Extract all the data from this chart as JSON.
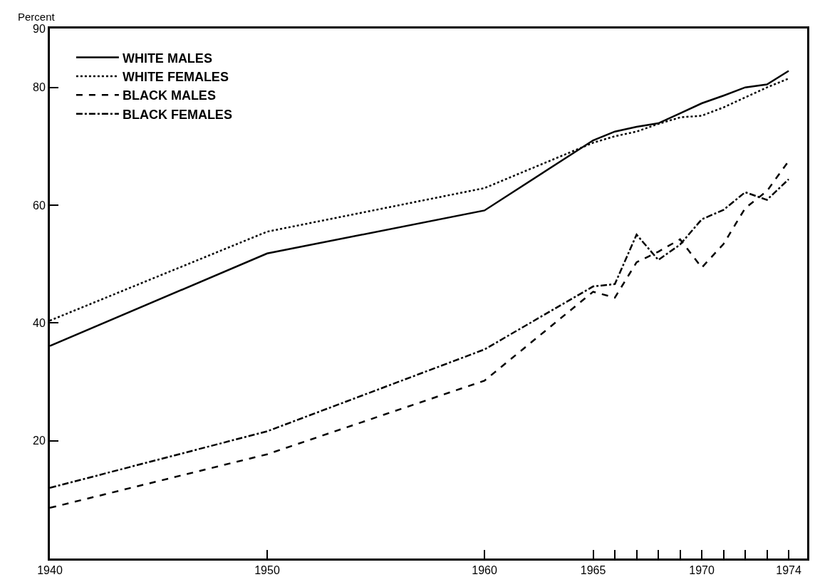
{
  "chart_data": {
    "type": "line",
    "ylabel": "Percent",
    "x": [
      1940,
      1950,
      1960,
      1965,
      1966,
      1967,
      1968,
      1969,
      1970,
      1971,
      1972,
      1973,
      1974
    ],
    "series": [
      {
        "name": "WHITE MALES",
        "color": "#000000",
        "line_style": "solid",
        "values": [
          36.1,
          51.8,
          59.1,
          71.0,
          72.5,
          73.3,
          73.9,
          75.6,
          77.3,
          78.6,
          80.0,
          80.5,
          82.8
        ]
      },
      {
        "name": "WHITE FEMALES",
        "color": "#000000",
        "line_style": "dotted",
        "values": [
          40.4,
          55.5,
          62.9,
          70.6,
          71.7,
          72.5,
          73.8,
          74.9,
          75.2,
          76.6,
          78.3,
          80.0,
          81.5
        ]
      },
      {
        "name": "BLACK MALES",
        "color": "#000000",
        "line_style": "dashed",
        "values": [
          8.6,
          17.7,
          30.2,
          45.3,
          44.3,
          50.3,
          52.1,
          54.2,
          49.4,
          53.4,
          59.5,
          62.4,
          67.5
        ]
      },
      {
        "name": "BLACK FEMALES",
        "color": "#000000",
        "line_style": "dashdot",
        "values": [
          12.0,
          21.6,
          35.5,
          46.2,
          46.6,
          55.0,
          50.7,
          53.3,
          57.6,
          59.2,
          62.2,
          60.9,
          64.4
        ]
      }
    ],
    "xlim": [
      1940,
      1974.85
    ],
    "xticks": [
      1940,
      1950,
      1960,
      1965,
      {
        "value": 1966,
        "label": null
      },
      {
        "value": 1967,
        "label": null
      },
      {
        "value": 1968,
        "label": null
      },
      {
        "value": 1969,
        "label": null
      },
      1970,
      {
        "value": 1971,
        "label": null
      },
      {
        "value": 1972,
        "label": null
      },
      {
        "value": 1973,
        "label": null
      },
      1974
    ],
    "ylim": [
      0,
      90
    ],
    "yticks": [
      20,
      40,
      60,
      80,
      90
    ],
    "grid": false,
    "legend": "top left",
    "marker": "none"
  }
}
